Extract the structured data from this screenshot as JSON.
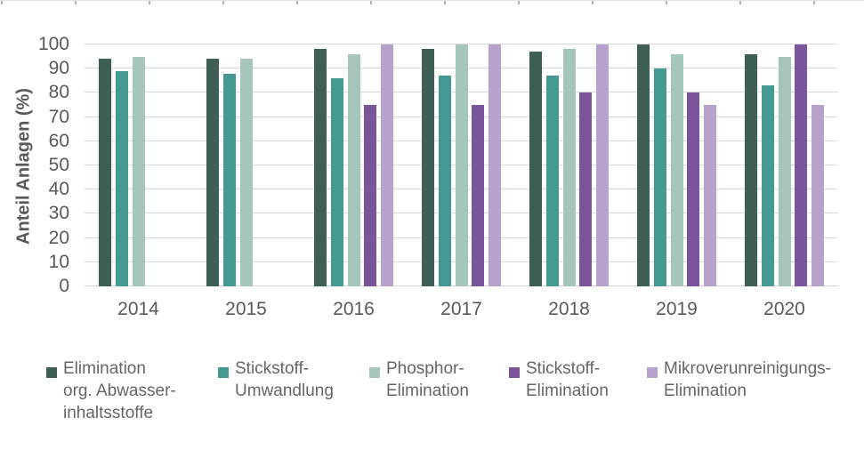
{
  "chart_data": {
    "type": "bar",
    "title": "",
    "ylabel": "Anteil Anlagen (%)",
    "xlabel": "",
    "ylim": [
      0,
      100
    ],
    "yticks": [
      0,
      10,
      20,
      30,
      40,
      50,
      60,
      70,
      80,
      90,
      100
    ],
    "grid": "horizontal",
    "legend_position": "bottom",
    "categories": [
      "2014",
      "2015",
      "2016",
      "2017",
      "2018",
      "2019",
      "2020"
    ],
    "series": [
      {
        "name": "Elimination org. Abwasser-inhaltsstoffe",
        "color": "#3D5F56",
        "values": [
          94,
          94,
          98,
          98,
          97,
          100,
          96
        ]
      },
      {
        "name": "Stickstoff-Umwandlung",
        "color": "#449992",
        "values": [
          89,
          88,
          86,
          87,
          87,
          90,
          83
        ]
      },
      {
        "name": "Phosphor-Elimination",
        "color": "#A6C5BB",
        "values": [
          95,
          94,
          96,
          100,
          98,
          96,
          95
        ]
      },
      {
        "name": "Stickstoff-Elimination",
        "color": "#7A559C",
        "values": [
          null,
          null,
          75,
          75,
          80,
          80,
          100
        ]
      },
      {
        "name": "Mikroverunreinigungs-Elimination",
        "color": "#B6A2CC",
        "values": [
          null,
          null,
          100,
          100,
          100,
          75,
          75
        ]
      }
    ]
  },
  "legend": {
    "items": [
      {
        "label_lines": [
          "Elimination",
          "org. Abwasser-",
          "inhaltsstoffe"
        ]
      },
      {
        "label_lines": [
          "Stickstoff-",
          "Umwandlung"
        ]
      },
      {
        "label_lines": [
          "Phosphor-",
          "Elimination"
        ]
      },
      {
        "label_lines": [
          "Stickstoff-",
          "Elimination"
        ]
      },
      {
        "label_lines": [
          "Mikroverunreinigungs-",
          "Elimination"
        ]
      }
    ]
  }
}
